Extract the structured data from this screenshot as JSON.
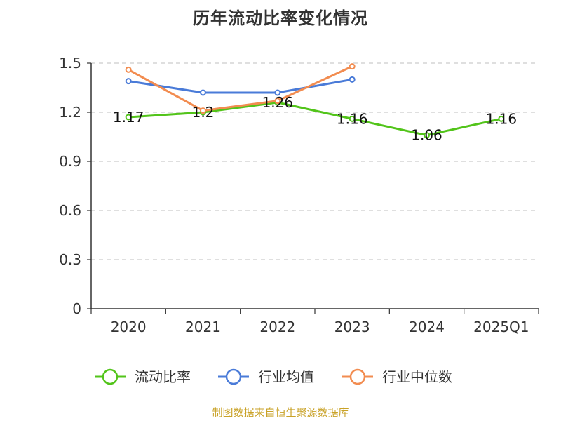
{
  "title": "历年流动比率变化情况",
  "source": "制图数据来自恒生聚源数据库",
  "chart_data": {
    "type": "line",
    "title": "历年流动比率变化情况",
    "categories": [
      "2020",
      "2021",
      "2022",
      "2023",
      "2024",
      "2025Q1"
    ],
    "ylim": [
      0,
      1.5
    ],
    "yticks": [
      "0",
      "0.3",
      "0.6",
      "0.9",
      "1.2",
      "1.5"
    ],
    "grid": true,
    "legend": "bottom",
    "series": [
      {
        "name": "流动比率",
        "color": "#52c41a",
        "values": [
          1.17,
          1.2,
          1.26,
          1.16,
          1.06,
          1.16
        ],
        "labels": [
          "1.17",
          "1.2",
          "1.26",
          "1.16",
          "1.06",
          "1.16"
        ]
      },
      {
        "name": "行业均值",
        "color": "#4a7bd8",
        "values": [
          1.39,
          1.32,
          1.32,
          1.4,
          null,
          null
        ]
      },
      {
        "name": "行业中位数",
        "color": "#f28c50",
        "values": [
          1.46,
          1.21,
          1.27,
          1.48,
          null,
          null
        ]
      }
    ]
  }
}
